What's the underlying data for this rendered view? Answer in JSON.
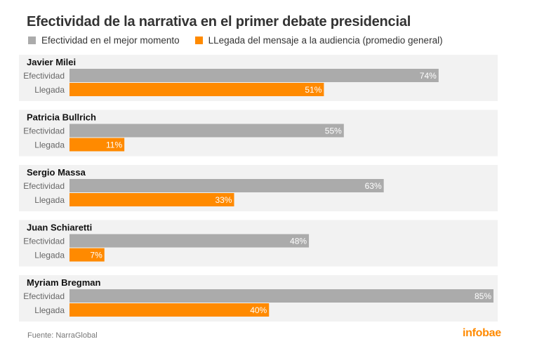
{
  "chart_data": {
    "type": "bar",
    "orientation": "horizontal",
    "title": "Efectividad de la narrativa en el primer debate presidencial",
    "legend": [
      {
        "name": "Efectividad en el mejor momento",
        "color": "#ababab"
      },
      {
        "name": "LLegada del mensaje a la audiencia (promedio general)",
        "color": "#ff8a00"
      }
    ],
    "row_labels": [
      "Efectividad",
      "Llegada"
    ],
    "groups": [
      {
        "name": "Javier Milei",
        "efectividad": 74,
        "llegada": 51,
        "efectividad_label": "74%",
        "llegada_label": "51%"
      },
      {
        "name": "Patricia Bullrich",
        "efectividad": 55,
        "llegada": 11,
        "efectividad_label": "55%",
        "llegada_label": "11%"
      },
      {
        "name": "Sergio Massa",
        "efectividad": 63,
        "llegada": 33,
        "efectividad_label": "63%",
        "llegada_label": "33%"
      },
      {
        "name": "Juan Schiaretti",
        "efectividad": 48,
        "llegada": 7,
        "efectividad_label": "48%",
        "llegada_label": "7%"
      },
      {
        "name": "Myriam Bregman",
        "efectividad": 85,
        "llegada": 40,
        "efectividad_label": "85%",
        "llegada_label": "40%"
      }
    ],
    "xlim": [
      0,
      85
    ],
    "grid": false,
    "legend_placement": "top-left"
  },
  "footer": {
    "source": "Fuente: NarraGlobal",
    "brand": "infobae"
  },
  "colors": {
    "group_background": "#f2f2f2",
    "label_on_bar": "#ffffff"
  }
}
